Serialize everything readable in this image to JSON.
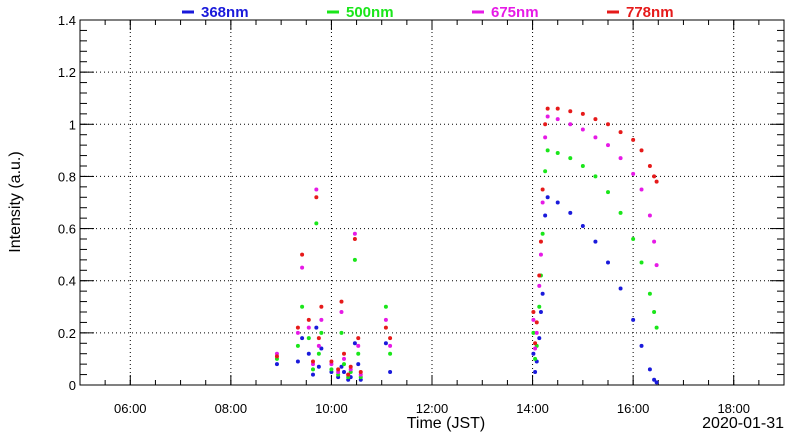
{
  "chart_data": {
    "type": "scatter",
    "xlabel": "Time (JST)",
    "ylabel": "Intensity (a.u.)",
    "date_label": "2020-01-31",
    "xlim": [
      "05:00",
      "19:00"
    ],
    "ylim": [
      0,
      1.4
    ],
    "x_ticks": [
      "06:00",
      "08:00",
      "10:00",
      "12:00",
      "14:00",
      "16:00",
      "18:00"
    ],
    "y_ticks": [
      "0",
      "0.2",
      "0.4",
      "0.6",
      "0.8",
      "1",
      "1.2",
      "1.4"
    ],
    "grid": true,
    "legend_position": "top",
    "series": [
      {
        "name": "368nm",
        "color": "#1a1adb",
        "points": [
          [
            "08:55",
            0.08
          ],
          [
            "09:20",
            0.09
          ],
          [
            "09:25",
            0.18
          ],
          [
            "09:33",
            0.12
          ],
          [
            "09:38",
            0.04
          ],
          [
            "09:42",
            0.22
          ],
          [
            "09:45",
            0.07
          ],
          [
            "09:48",
            0.14
          ],
          [
            "10:00",
            0.05
          ],
          [
            "10:08",
            0.03
          ],
          [
            "10:12",
            0.07
          ],
          [
            "10:15",
            0.05
          ],
          [
            "10:20",
            0.02
          ],
          [
            "10:23",
            0.03
          ],
          [
            "10:28",
            0.16
          ],
          [
            "10:32",
            0.08
          ],
          [
            "10:35",
            0.02
          ],
          [
            "11:05",
            0.16
          ],
          [
            "11:10",
            0.05
          ],
          [
            "14:01",
            0.12
          ],
          [
            "14:03",
            0.05
          ],
          [
            "14:05",
            0.09
          ],
          [
            "14:08",
            0.18
          ],
          [
            "14:10",
            0.28
          ],
          [
            "14:12",
            0.35
          ],
          [
            "14:15",
            0.65
          ],
          [
            "14:18",
            0.72
          ],
          [
            "14:30",
            0.7
          ],
          [
            "14:45",
            0.66
          ],
          [
            "15:00",
            0.61
          ],
          [
            "15:15",
            0.55
          ],
          [
            "15:30",
            0.47
          ],
          [
            "15:45",
            0.37
          ],
          [
            "16:00",
            0.25
          ],
          [
            "16:10",
            0.15
          ],
          [
            "16:20",
            0.06
          ],
          [
            "16:25",
            0.02
          ],
          [
            "16:28",
            0.01
          ]
        ]
      },
      {
        "name": "500nm",
        "color": "#1ae61a",
        "points": [
          [
            "08:55",
            0.1
          ],
          [
            "09:20",
            0.15
          ],
          [
            "09:25",
            0.3
          ],
          [
            "09:33",
            0.18
          ],
          [
            "09:38",
            0.06
          ],
          [
            "09:42",
            0.62
          ],
          [
            "09:45",
            0.12
          ],
          [
            "09:48",
            0.2
          ],
          [
            "10:00",
            0.06
          ],
          [
            "10:08",
            0.04
          ],
          [
            "10:12",
            0.2
          ],
          [
            "10:15",
            0.08
          ],
          [
            "10:20",
            0.03
          ],
          [
            "10:23",
            0.05
          ],
          [
            "10:28",
            0.48
          ],
          [
            "10:32",
            0.12
          ],
          [
            "10:35",
            0.03
          ],
          [
            "11:05",
            0.3
          ],
          [
            "11:10",
            0.12
          ],
          [
            "14:01",
            0.2
          ],
          [
            "14:03",
            0.1
          ],
          [
            "14:05",
            0.15
          ],
          [
            "14:08",
            0.3
          ],
          [
            "14:10",
            0.42
          ],
          [
            "14:12",
            0.58
          ],
          [
            "14:15",
            0.82
          ],
          [
            "14:18",
            0.9
          ],
          [
            "14:30",
            0.89
          ],
          [
            "14:45",
            0.87
          ],
          [
            "15:00",
            0.84
          ],
          [
            "15:15",
            0.8
          ],
          [
            "15:30",
            0.74
          ],
          [
            "15:45",
            0.66
          ],
          [
            "16:00",
            0.56
          ],
          [
            "16:10",
            0.47
          ],
          [
            "16:20",
            0.35
          ],
          [
            "16:25",
            0.28
          ],
          [
            "16:28",
            0.22
          ]
        ]
      },
      {
        "name": "675nm",
        "color": "#e61ae6",
        "points": [
          [
            "08:55",
            0.12
          ],
          [
            "09:20",
            0.2
          ],
          [
            "09:25",
            0.45
          ],
          [
            "09:33",
            0.22
          ],
          [
            "09:38",
            0.08
          ],
          [
            "09:42",
            0.75
          ],
          [
            "09:45",
            0.15
          ],
          [
            "09:48",
            0.25
          ],
          [
            "10:00",
            0.08
          ],
          [
            "10:08",
            0.05
          ],
          [
            "10:12",
            0.28
          ],
          [
            "10:15",
            0.1
          ],
          [
            "10:20",
            0.04
          ],
          [
            "10:23",
            0.06
          ],
          [
            "10:28",
            0.58
          ],
          [
            "10:32",
            0.15
          ],
          [
            "10:35",
            0.04
          ],
          [
            "11:05",
            0.25
          ],
          [
            "11:10",
            0.15
          ],
          [
            "14:01",
            0.25
          ],
          [
            "14:03",
            0.14
          ],
          [
            "14:05",
            0.2
          ],
          [
            "14:08",
            0.38
          ],
          [
            "14:10",
            0.5
          ],
          [
            "14:12",
            0.7
          ],
          [
            "14:15",
            0.95
          ],
          [
            "14:18",
            1.03
          ],
          [
            "14:30",
            1.02
          ],
          [
            "14:45",
            1.0
          ],
          [
            "15:00",
            0.98
          ],
          [
            "15:15",
            0.95
          ],
          [
            "15:30",
            0.92
          ],
          [
            "15:45",
            0.87
          ],
          [
            "16:00",
            0.81
          ],
          [
            "16:10",
            0.75
          ],
          [
            "16:20",
            0.65
          ],
          [
            "16:25",
            0.55
          ],
          [
            "16:28",
            0.46
          ]
        ]
      },
      {
        "name": "778nm",
        "color": "#e61a1a",
        "points": [
          [
            "08:55",
            0.11
          ],
          [
            "09:20",
            0.22
          ],
          [
            "09:25",
            0.5
          ],
          [
            "09:33",
            0.25
          ],
          [
            "09:38",
            0.09
          ],
          [
            "09:42",
            0.72
          ],
          [
            "09:45",
            0.18
          ],
          [
            "09:48",
            0.3
          ],
          [
            "10:00",
            0.09
          ],
          [
            "10:08",
            0.06
          ],
          [
            "10:12",
            0.32
          ],
          [
            "10:15",
            0.12
          ],
          [
            "10:20",
            0.04
          ],
          [
            "10:23",
            0.07
          ],
          [
            "10:28",
            0.56
          ],
          [
            "10:32",
            0.18
          ],
          [
            "10:35",
            0.05
          ],
          [
            "11:05",
            0.22
          ],
          [
            "11:10",
            0.18
          ],
          [
            "14:01",
            0.28
          ],
          [
            "14:03",
            0.16
          ],
          [
            "14:05",
            0.24
          ],
          [
            "14:08",
            0.42
          ],
          [
            "14:10",
            0.55
          ],
          [
            "14:12",
            0.75
          ],
          [
            "14:15",
            1.0
          ],
          [
            "14:18",
            1.06
          ],
          [
            "14:30",
            1.06
          ],
          [
            "14:45",
            1.05
          ],
          [
            "15:00",
            1.04
          ],
          [
            "15:15",
            1.02
          ],
          [
            "15:30",
            1.0
          ],
          [
            "15:45",
            0.97
          ],
          [
            "16:00",
            0.94
          ],
          [
            "16:10",
            0.9
          ],
          [
            "16:20",
            0.84
          ],
          [
            "16:25",
            0.8
          ],
          [
            "16:28",
            0.78
          ]
        ]
      }
    ]
  }
}
